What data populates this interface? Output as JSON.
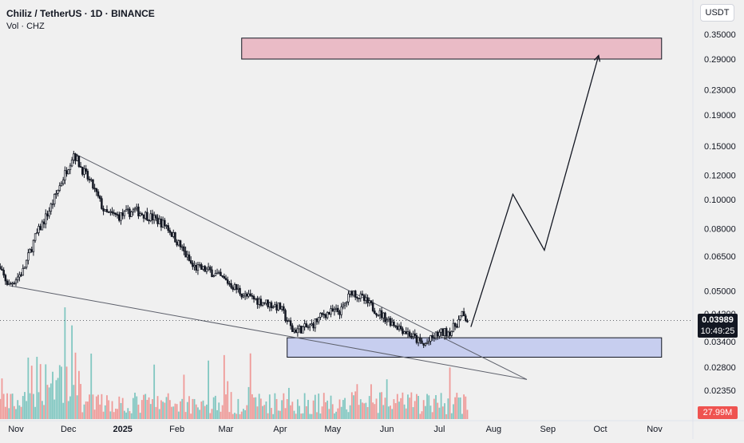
{
  "header": {
    "title": "Chiliz / TetherUS · 1D · BINANCE",
    "volume_label": "Vol · CHZ",
    "currency": "USDT"
  },
  "price_badge": {
    "price": "0.03989",
    "countdown": "10:49:25"
  },
  "volume_badge": "27.99M",
  "colors": {
    "background": "#f0f0f0",
    "up": "#131722",
    "down": "#131722",
    "volume_up": "#26a69a",
    "volume_down": "#ef5350",
    "target_zone": "#e8a9b8",
    "support_zone": "#b9c3ef"
  },
  "chart_data": {
    "type": "candlestick",
    "symbol": "CHZUSDT",
    "y_scale": "log",
    "y_ticks": [
      "0.35000",
      "0.29000",
      "0.23000",
      "0.19000",
      "0.15000",
      "0.12000",
      "0.10000",
      "0.08000",
      "0.06500",
      "0.05000",
      "0.04200",
      "0.03400",
      "0.02800",
      "0.02350"
    ],
    "x_ticks": [
      "Nov",
      "Dec",
      "2025",
      "Feb",
      "Mar",
      "Apr",
      "May",
      "Jun",
      "Jul",
      "Aug",
      "Sep",
      "Oct",
      "Nov"
    ],
    "price_path": [
      [
        "2024-10-20",
        0.062
      ],
      [
        "2024-10-28",
        0.052
      ],
      [
        "2024-11-05",
        0.058
      ],
      [
        "2024-11-12",
        0.075
      ],
      [
        "2024-11-20",
        0.092
      ],
      [
        "2024-11-28",
        0.118
      ],
      [
        "2024-12-04",
        0.142
      ],
      [
        "2024-12-08",
        0.128
      ],
      [
        "2024-12-15",
        0.11
      ],
      [
        "2024-12-22",
        0.09
      ],
      [
        "2024-12-30",
        0.088
      ],
      [
        "2025-01-08",
        0.092
      ],
      [
        "2025-01-18",
        0.087
      ],
      [
        "2025-01-26",
        0.082
      ],
      [
        "2025-02-03",
        0.07
      ],
      [
        "2025-02-10",
        0.06
      ],
      [
        "2025-02-20",
        0.058
      ],
      [
        "2025-03-03",
        0.053
      ],
      [
        "2025-03-12",
        0.048
      ],
      [
        "2025-03-22",
        0.046
      ],
      [
        "2025-04-01",
        0.044
      ],
      [
        "2025-04-08",
        0.037
      ],
      [
        "2025-04-18",
        0.038
      ],
      [
        "2025-04-26",
        0.042
      ],
      [
        "2025-05-06",
        0.043
      ],
      [
        "2025-05-12",
        0.05
      ],
      [
        "2025-05-20",
        0.046
      ],
      [
        "2025-05-28",
        0.042
      ],
      [
        "2025-06-05",
        0.039
      ],
      [
        "2025-06-14",
        0.036
      ],
      [
        "2025-06-22",
        0.033
      ],
      [
        "2025-06-30",
        0.036
      ],
      [
        "2025-07-08",
        0.037
      ],
      [
        "2025-07-14",
        0.0415
      ],
      [
        "2025-07-17",
        0.03989
      ]
    ],
    "wedge_upper_line": [
      [
        "2024-12-04",
        0.142
      ],
      [
        "2025-08-20",
        0.0255
      ]
    ],
    "wedge_lower_line": [
      [
        "2024-10-28",
        0.052
      ],
      [
        "2025-08-20",
        0.0255
      ]
    ],
    "projection_path": [
      [
        "2025-07-19",
        0.038
      ],
      [
        "2025-08-12",
        0.104
      ],
      [
        "2025-08-30",
        0.068
      ],
      [
        "2025-09-30",
        0.298
      ]
    ],
    "zones": [
      {
        "name": "target",
        "from": "2025-03-10",
        "to": "2025-11-05",
        "low": 0.29,
        "high": 0.34
      },
      {
        "name": "support",
        "from": "2025-04-05",
        "to": "2025-11-05",
        "low": 0.0302,
        "high": 0.035
      }
    ]
  }
}
